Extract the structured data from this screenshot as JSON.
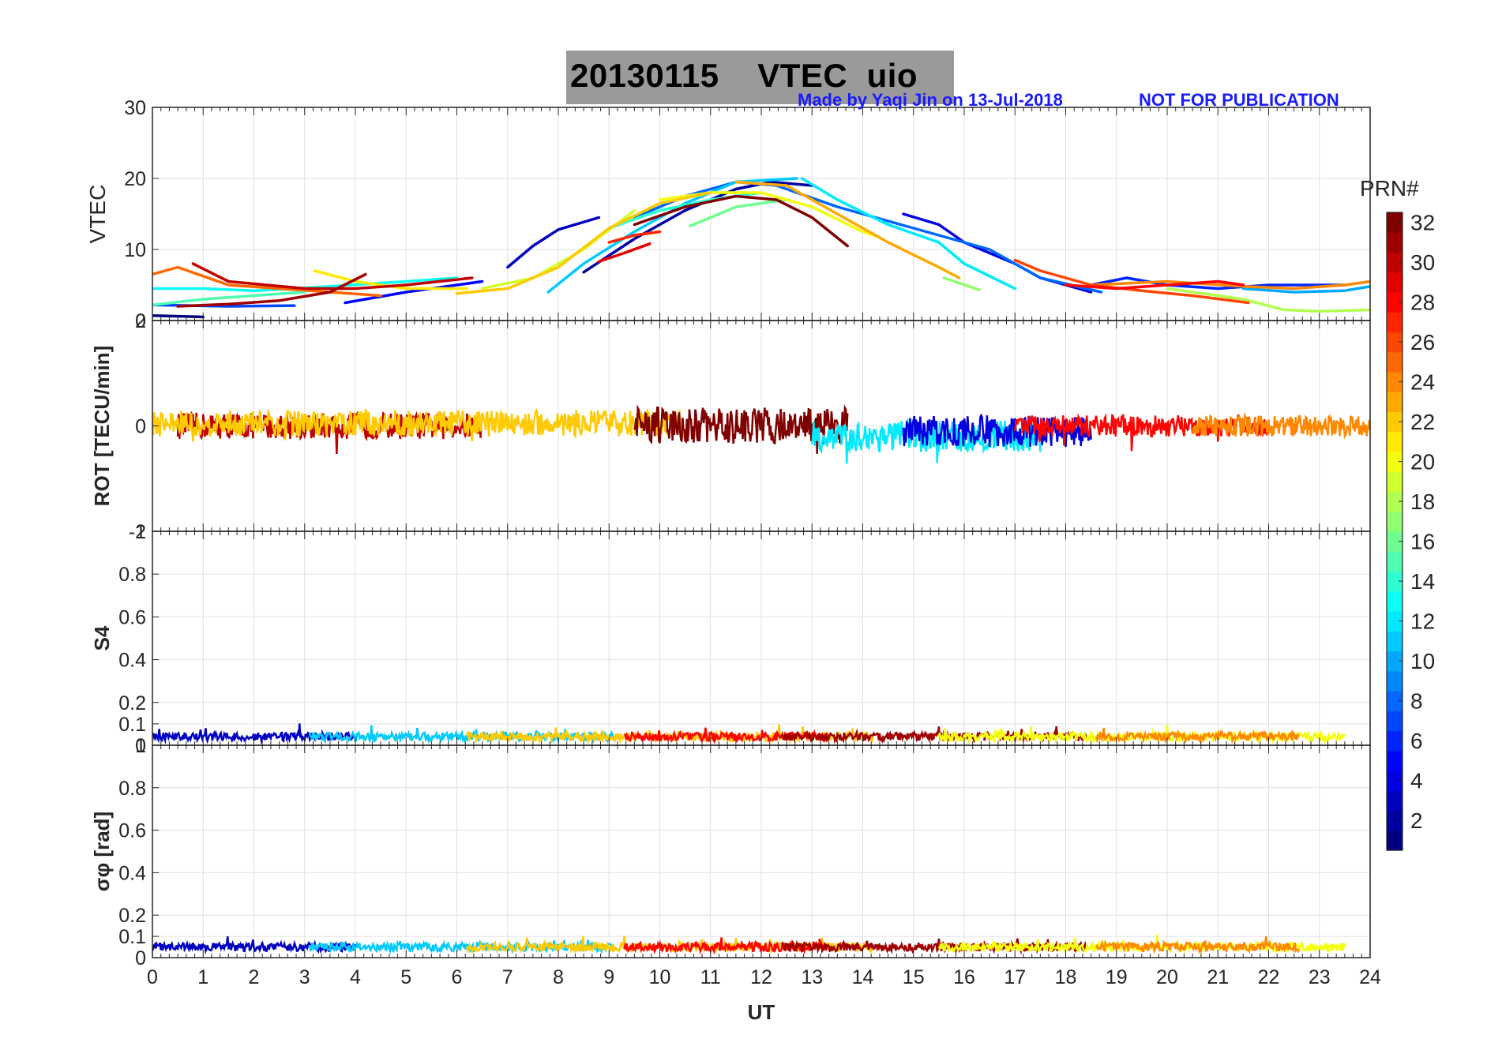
{
  "title": {
    "date": "20130115",
    "quantity": "VTEC",
    "station": "uio"
  },
  "credits": {
    "author": "Made by Yaqi Jin on 13-Jul-2018",
    "notice": "NOT FOR PUBLICATION"
  },
  "colorbar": {
    "label": "PRN#",
    "ticks": [
      "2",
      "4",
      "6",
      "8",
      "10",
      "12",
      "14",
      "16",
      "18",
      "20",
      "22",
      "24",
      "26",
      "28",
      "30",
      "32"
    ],
    "range": [
      1,
      32
    ],
    "colormap": "jet"
  },
  "chart_data": [
    {
      "type": "line",
      "panel": "vtec",
      "ylabel": "VTEC",
      "ylim": [
        0,
        30
      ],
      "yticks": [
        "0",
        "10",
        "20",
        "30"
      ],
      "xlabel": "",
      "xlim": [
        0,
        24
      ],
      "grid": true,
      "series": [
        {
          "name": "PRN 1",
          "prn": 1,
          "x": [
            0,
            1.0
          ],
          "y": [
            0.7,
            0.5
          ]
        },
        {
          "name": "PRN 2",
          "prn": 2,
          "x": [
            8.5,
            9.5,
            10.5,
            11.5,
            12.2,
            13.0
          ],
          "y": [
            6.8,
            11.5,
            15.5,
            18.5,
            19.5,
            19.0
          ]
        },
        {
          "name": "PRN 3",
          "prn": 3,
          "x": [
            7.0,
            7.5,
            8.0,
            8.8
          ],
          "y": [
            7.5,
            10.5,
            12.8,
            14.5
          ]
        },
        {
          "name": "PRN 4",
          "prn": 4,
          "x": [
            14.8,
            15.5,
            16.0,
            17.0,
            17.5,
            18.5
          ],
          "y": [
            15.0,
            13.5,
            11.0,
            8.0,
            6.0,
            4.0
          ]
        },
        {
          "name": "PRN 5",
          "prn": 5,
          "x": [
            3.8,
            5.0,
            6.5
          ],
          "y": [
            2.5,
            4.0,
            5.5
          ]
        },
        {
          "name": "PRN 6",
          "prn": 6,
          "x": [
            18.5,
            19.2,
            20.0,
            21.0,
            22.0,
            23.5
          ],
          "y": [
            5.0,
            6.0,
            5.0,
            4.5,
            5.0,
            5.0
          ]
        },
        {
          "name": "PRN 7",
          "prn": 7,
          "x": [
            0,
            1.5,
            2.8
          ],
          "y": [
            2.2,
            2.0,
            2.1
          ]
        },
        {
          "name": "PRN 8",
          "prn": 8,
          "x": [
            9.5,
            10.5,
            11.5,
            12.3,
            13.5,
            15.0,
            16.5,
            17.5,
            18.7
          ],
          "y": [
            14.5,
            17.5,
            19.5,
            19.0,
            16.0,
            13.0,
            10.0,
            6.0,
            4.0
          ]
        },
        {
          "name": "PRN 10",
          "prn": 10,
          "x": [
            21.5,
            22.5,
            23.5,
            24.0
          ],
          "y": [
            4.5,
            4.0,
            4.2,
            4.8
          ]
        },
        {
          "name": "PRN 11",
          "prn": 11,
          "x": [
            7.8,
            8.5,
            9.5,
            10.5,
            11.5,
            12.7
          ],
          "y": [
            4.0,
            8.0,
            12.5,
            16.5,
            19.5,
            20.0
          ]
        },
        {
          "name": "PRN 12",
          "prn": 12,
          "x": [
            12.8,
            13.5,
            14.5,
            15.5,
            16.0,
            17.0
          ],
          "y": [
            20.0,
            17.0,
            13.5,
            11.0,
            8.0,
            4.5
          ]
        },
        {
          "name": "PRN 13",
          "prn": 13,
          "x": [
            0,
            1.0,
            2.0,
            3.5,
            5.0,
            6.0
          ],
          "y": [
            4.5,
            4.5,
            4.2,
            4.8,
            5.5,
            6.0
          ]
        },
        {
          "name": "PRN 14",
          "prn": 14,
          "x": [
            9.0,
            10.0,
            11.0,
            12.0
          ],
          "y": [
            13.0,
            15.5,
            17.0,
            18.0
          ]
        },
        {
          "name": "PRN 15",
          "prn": 15,
          "x": [
            0,
            1.0,
            3.0
          ],
          "y": [
            2.2,
            3.0,
            4.0
          ]
        },
        {
          "name": "PRN 16",
          "prn": 16,
          "x": [
            10.6,
            11.5,
            12.5
          ],
          "y": [
            13.3,
            16.0,
            17.0
          ]
        },
        {
          "name": "PRN 17",
          "prn": 17,
          "x": [
            15.6,
            16.3
          ],
          "y": [
            6.0,
            4.3
          ]
        },
        {
          "name": "PRN 18",
          "prn": 18,
          "x": [
            20.0,
            21.5,
            22.3,
            23.0,
            24.0
          ],
          "y": [
            4.5,
            3.0,
            1.5,
            1.3,
            1.5
          ]
        },
        {
          "name": "PRN 19",
          "prn": 19,
          "x": [
            6.5,
            7.5,
            8.5,
            9.5
          ],
          "y": [
            4.5,
            6.0,
            10.0,
            15.5
          ]
        },
        {
          "name": "PRN 20",
          "prn": 20,
          "x": [
            10.0,
            11.0,
            12.0,
            13.0,
            14.0,
            14.3
          ],
          "y": [
            17.0,
            18.0,
            18.0,
            16.0,
            12.5,
            11.8
          ]
        },
        {
          "name": "PRN 21",
          "prn": 21,
          "x": [
            3.2,
            4.0,
            5.0,
            6.2
          ],
          "y": [
            7.0,
            5.5,
            4.5,
            4.5
          ]
        },
        {
          "name": "PRN 22",
          "prn": 22,
          "x": [
            6.0,
            7.0,
            8.0,
            9.0,
            10.0,
            11.0
          ],
          "y": [
            3.8,
            4.5,
            7.5,
            13.0,
            16.5,
            18.0
          ]
        },
        {
          "name": "PRN 23",
          "prn": 23,
          "x": [
            11.5,
            12.5,
            13.5,
            14.5,
            15.5,
            15.9
          ],
          "y": [
            19.5,
            19.0,
            15.0,
            11.0,
            7.5,
            6.0
          ]
        },
        {
          "name": "PRN 24",
          "prn": 24,
          "x": [
            18.5,
            20.0,
            21.5,
            22.5,
            23.5,
            24.0
          ],
          "y": [
            5.0,
            5.5,
            4.8,
            4.5,
            5.0,
            5.5
          ]
        },
        {
          "name": "PRN 25",
          "prn": 25,
          "x": [
            0,
            0.5,
            1.5,
            2.5,
            3.5,
            4.5
          ],
          "y": [
            6.5,
            7.5,
            5.0,
            4.5,
            4.0,
            3.5
          ]
        },
        {
          "name": "PRN 26",
          "prn": 26,
          "x": [
            17.0,
            17.5,
            18.5,
            19.5,
            20.5,
            21.6
          ],
          "y": [
            8.5,
            7.0,
            5.0,
            4.2,
            3.5,
            2.5
          ]
        },
        {
          "name": "PRN 27",
          "prn": 27,
          "x": [
            9.0,
            9.5,
            10.0
          ],
          "y": [
            11.0,
            12.0,
            12.5
          ]
        },
        {
          "name": "PRN 28",
          "prn": 28,
          "x": [
            18.0,
            19.0,
            20.0,
            21.0,
            21.5
          ],
          "y": [
            5.0,
            4.5,
            5.0,
            5.5,
            5.0
          ]
        },
        {
          "name": "PRN 29",
          "prn": 29,
          "x": [
            8.8,
            9.3,
            9.8
          ],
          "y": [
            8.3,
            9.5,
            10.8
          ]
        },
        {
          "name": "PRN 30",
          "prn": 30,
          "x": [
            0.8,
            1.5,
            3.0,
            4.0,
            5.0,
            6.3
          ],
          "y": [
            8.0,
            5.5,
            4.5,
            4.5,
            5.0,
            6.0
          ]
        },
        {
          "name": "PRN 31",
          "prn": 31,
          "x": [
            0.5,
            1.5,
            2.5,
            3.5,
            4.2
          ],
          "y": [
            2.0,
            2.3,
            2.8,
            4.0,
            6.5
          ]
        },
        {
          "name": "PRN 32",
          "prn": 32,
          "x": [
            9.5,
            10.5,
            11.5,
            12.3,
            13.0,
            13.7
          ],
          "y": [
            13.5,
            16.0,
            17.5,
            17.0,
            14.5,
            10.5
          ]
        }
      ]
    },
    {
      "type": "line",
      "panel": "rot",
      "ylabel": "ROT [TECU/min]",
      "ylim": [
        -2,
        2
      ],
      "yticks": [
        "-2",
        "0",
        "2"
      ],
      "xlim": [
        0,
        24
      ],
      "grid": true,
      "note": "noisy traces around 0, typical amplitude 0.2-0.4 TECU/min, spikes to about -0.7 near 12 UT and 15-16 UT",
      "series": [
        {
          "name": "PRN 30",
          "prn": 30,
          "x": [
            0.5,
            6.5
          ],
          "baseline": 0.0,
          "amplitude": 0.25
        },
        {
          "name": "PRN 22",
          "prn": 22,
          "x": [
            0,
            10.5
          ],
          "baseline": 0.05,
          "amplitude": 0.25
        },
        {
          "name": "PRN 32",
          "prn": 32,
          "x": [
            9.5,
            13.7
          ],
          "baseline": 0.0,
          "amplitude": 0.35
        },
        {
          "name": "PRN 12",
          "prn": 12,
          "x": [
            13.0,
            17.5
          ],
          "baseline": -0.2,
          "amplitude": 0.3
        },
        {
          "name": "PRN 4",
          "prn": 4,
          "x": [
            14.8,
            18.5
          ],
          "baseline": -0.1,
          "amplitude": 0.3
        },
        {
          "name": "PRN 28",
          "prn": 28,
          "x": [
            17.0,
            22.0
          ],
          "baseline": 0.0,
          "amplitude": 0.2
        },
        {
          "name": "PRN 24",
          "prn": 24,
          "x": [
            20.5,
            24.0
          ],
          "baseline": 0.0,
          "amplitude": 0.2
        }
      ]
    },
    {
      "type": "line",
      "panel": "s4",
      "ylabel": "S4",
      "ylim": [
        0,
        1
      ],
      "yticks": [
        "0",
        "0.1",
        "0.2",
        "0.4",
        "0.6",
        "0.8",
        "1"
      ],
      "xlim": [
        0,
        24
      ],
      "grid": true,
      "note": "all PRNs low, about 0.02-0.06 with spikes up to 0.1",
      "series": [
        {
          "name": "all PRNs",
          "x": [
            0,
            24
          ],
          "baseline": 0.04,
          "amplitude": 0.02
        }
      ]
    },
    {
      "type": "line",
      "panel": "sigma_phi",
      "ylabel": "σφ [rad]",
      "ylim": [
        0,
        1
      ],
      "yticks": [
        "0",
        "0.1",
        "0.2",
        "0.4",
        "0.6",
        "0.8",
        "1"
      ],
      "xlabel": "UT",
      "xlim": [
        0,
        24
      ],
      "xticks": [
        "0",
        "1",
        "2",
        "3",
        "4",
        "5",
        "6",
        "7",
        "8",
        "9",
        "10",
        "11",
        "12",
        "13",
        "14",
        "15",
        "16",
        "17",
        "18",
        "19",
        "20",
        "21",
        "22",
        "23",
        "24"
      ],
      "grid": true,
      "note": "all PRNs low, about 0.03-0.07 with spikes up to 0.13 near 7.5 UT",
      "series": [
        {
          "name": "all PRNs",
          "x": [
            0,
            24
          ],
          "baseline": 0.05,
          "amplitude": 0.02
        }
      ]
    }
  ]
}
